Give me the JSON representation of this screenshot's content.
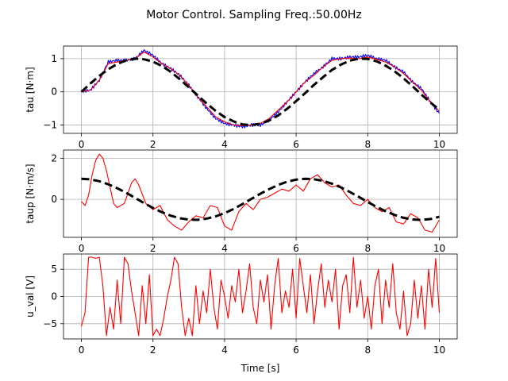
{
  "figure": {
    "title": "Motor Control. Sampling Freq.:50.00Hz"
  },
  "chart_data": [
    {
      "type": "line",
      "ylabel": "tau [N·m]",
      "xlabel": "",
      "xlim": [
        -0.5,
        10.5
      ],
      "ylim": [
        -1.25,
        1.38
      ],
      "xticks": [
        0,
        2,
        4,
        6,
        8,
        10
      ],
      "yticks": [
        -1,
        0,
        1
      ],
      "grid": true,
      "series": [
        {
          "color": "#0000ff",
          "style": "solid-noisy",
          "x": [
            0,
            0.25,
            0.5,
            0.75,
            1,
            1.25,
            1.5,
            1.75,
            2,
            2.25,
            2.5,
            2.75,
            3,
            3.25,
            3.5,
            3.75,
            4,
            4.25,
            4.5,
            4.75,
            5,
            5.25,
            5.5,
            5.75,
            6,
            6.25,
            6.5,
            6.75,
            7,
            7.25,
            7.5,
            7.75,
            8,
            8.25,
            8.5,
            8.75,
            9,
            9.25,
            9.5,
            9.75,
            10
          ],
          "values": [
            0.02,
            0.05,
            0.35,
            0.9,
            0.95,
            0.95,
            1.0,
            1.25,
            1.1,
            0.85,
            0.7,
            0.5,
            0.2,
            -0.15,
            -0.5,
            -0.8,
            -0.95,
            -1.0,
            -1.05,
            -1.0,
            -1.0,
            -0.85,
            -0.6,
            -0.3,
            0.0,
            0.3,
            0.55,
            0.75,
            1.0,
            1.0,
            1.05,
            1.05,
            1.1,
            1.0,
            0.95,
            0.75,
            0.6,
            0.3,
            0.1,
            -0.3,
            -0.65
          ]
        },
        {
          "color": "#ff0000",
          "style": "solid",
          "x": [
            0,
            0.25,
            0.5,
            0.75,
            1,
            1.25,
            1.5,
            1.75,
            2,
            2.25,
            2.5,
            2.75,
            3,
            3.25,
            3.5,
            3.75,
            4,
            4.25,
            4.5,
            4.75,
            5,
            5.25,
            5.5,
            5.75,
            6,
            6.25,
            6.5,
            6.75,
            7,
            7.25,
            7.5,
            7.75,
            8,
            8.25,
            8.5,
            8.75,
            9,
            9.25,
            9.5,
            9.75,
            10
          ],
          "values": [
            0.0,
            0.05,
            0.35,
            0.85,
            0.9,
            0.95,
            1.0,
            1.2,
            1.05,
            0.85,
            0.7,
            0.5,
            0.2,
            -0.15,
            -0.45,
            -0.75,
            -0.9,
            -1.0,
            -1.02,
            -1.0,
            -0.95,
            -0.8,
            -0.55,
            -0.3,
            0.0,
            0.3,
            0.5,
            0.75,
            0.95,
            1.0,
            1.02,
            1.0,
            1.05,
            0.98,
            0.9,
            0.75,
            0.55,
            0.3,
            0.05,
            -0.3,
            -0.58
          ]
        },
        {
          "color": "#000000",
          "style": "dashed",
          "x": [
            0,
            0.25,
            0.5,
            0.75,
            1,
            1.25,
            1.5,
            1.75,
            2,
            2.25,
            2.5,
            2.75,
            3,
            3.25,
            3.5,
            3.75,
            4,
            4.25,
            4.5,
            4.75,
            5,
            5.25,
            5.5,
            5.75,
            6,
            6.25,
            6.5,
            6.75,
            7,
            7.25,
            7.5,
            7.75,
            8,
            8.25,
            8.5,
            8.75,
            9,
            9.25,
            9.5,
            9.75,
            10
          ],
          "values": [
            0.0,
            0.25,
            0.48,
            0.68,
            0.84,
            0.95,
            1.0,
            0.98,
            0.91,
            0.78,
            0.6,
            0.38,
            0.14,
            -0.11,
            -0.35,
            -0.57,
            -0.76,
            -0.89,
            -0.98,
            -1.0,
            -0.96,
            -0.86,
            -0.71,
            -0.51,
            -0.28,
            -0.04,
            0.21,
            0.44,
            0.66,
            0.82,
            0.94,
            1.0,
            0.99,
            0.92,
            0.79,
            0.62,
            0.41,
            0.17,
            -0.08,
            -0.32,
            -0.54
          ]
        }
      ]
    },
    {
      "type": "line",
      "ylabel": "taup [N·m/s]",
      "xlabel": "",
      "xlim": [
        -0.5,
        10.5
      ],
      "ylim": [
        -1.85,
        2.4
      ],
      "xticks": [
        0,
        2,
        4,
        6,
        8,
        10
      ],
      "yticks": [
        0,
        2
      ],
      "grid": true,
      "series": [
        {
          "color": "#ff0000",
          "style": "solid",
          "x": [
            0,
            0.1,
            0.2,
            0.3,
            0.4,
            0.5,
            0.6,
            0.7,
            0.8,
            0.9,
            1,
            1.2,
            1.4,
            1.5,
            1.6,
            1.8,
            2,
            2.2,
            2.4,
            2.6,
            2.8,
            3,
            3.2,
            3.4,
            3.6,
            3.8,
            4,
            4.2,
            4.4,
            4.6,
            4.8,
            5,
            5.2,
            5.4,
            5.6,
            5.8,
            6,
            6.2,
            6.4,
            6.6,
            6.8,
            7,
            7.2,
            7.4,
            7.6,
            7.8,
            8,
            8.2,
            8.4,
            8.6,
            8.8,
            9,
            9.2,
            9.4,
            9.6,
            9.8,
            10
          ],
          "values": [
            -0.1,
            -0.3,
            0.2,
            1.2,
            1.9,
            2.2,
            2.0,
            1.4,
            0.6,
            -0.2,
            -0.4,
            -0.2,
            0.8,
            1.0,
            0.7,
            -0.2,
            -0.5,
            -0.3,
            -1.0,
            -1.3,
            -1.5,
            -1.1,
            -0.8,
            -0.9,
            -0.3,
            -0.4,
            -1.3,
            -1.5,
            -0.6,
            -0.2,
            -0.5,
            0.0,
            0.1,
            0.3,
            0.5,
            0.4,
            0.7,
            0.4,
            1.0,
            1.2,
            0.8,
            0.6,
            0.7,
            0.2,
            -0.2,
            -0.3,
            0.0,
            -0.4,
            -0.6,
            -0.4,
            -1.1,
            -1.2,
            -0.7,
            -0.9,
            -1.5,
            -1.6,
            -1.0
          ]
        },
        {
          "color": "#000000",
          "style": "dashed",
          "x": [
            0,
            0.25,
            0.5,
            0.75,
            1,
            1.25,
            1.5,
            1.75,
            2,
            2.25,
            2.5,
            2.75,
            3,
            3.25,
            3.5,
            3.75,
            4,
            4.25,
            4.5,
            4.75,
            5,
            5.25,
            5.5,
            5.75,
            6,
            6.25,
            6.5,
            6.75,
            7,
            7.25,
            7.5,
            7.75,
            8,
            8.25,
            8.5,
            8.75,
            9,
            9.25,
            9.5,
            9.75,
            10
          ],
          "values": [
            1.0,
            0.97,
            0.88,
            0.73,
            0.54,
            0.32,
            0.07,
            -0.18,
            -0.42,
            -0.63,
            -0.8,
            -0.92,
            -0.99,
            -1.0,
            -0.94,
            -0.83,
            -0.67,
            -0.47,
            -0.23,
            0.02,
            0.27,
            0.5,
            0.7,
            0.86,
            0.96,
            1.0,
            0.98,
            0.9,
            0.76,
            0.58,
            0.36,
            0.12,
            -0.13,
            -0.37,
            -0.58,
            -0.76,
            -0.9,
            -0.98,
            -1.0,
            -0.96,
            -0.85
          ]
        }
      ]
    },
    {
      "type": "line",
      "ylabel": "u_val [V]",
      "xlabel": "Time [s]",
      "xlim": [
        -0.5,
        10.5
      ],
      "ylim": [
        -7.8,
        7.8
      ],
      "xticks": [
        0,
        2,
        4,
        6,
        8,
        10
      ],
      "yticks": [
        -5,
        0,
        5
      ],
      "grid": true,
      "series": [
        {
          "color": "#ff0000",
          "style": "solid",
          "x": [
            0,
            0.1,
            0.2,
            0.3,
            0.4,
            0.5,
            0.6,
            0.7,
            0.8,
            0.9,
            1,
            1.1,
            1.2,
            1.3,
            1.4,
            1.5,
            1.6,
            1.7,
            1.8,
            1.9,
            2,
            2.1,
            2.2,
            2.3,
            2.4,
            2.5,
            2.6,
            2.7,
            2.8,
            2.9,
            3,
            3.1,
            3.2,
            3.3,
            3.4,
            3.5,
            3.6,
            3.7,
            3.8,
            3.9,
            4,
            4.1,
            4.2,
            4.3,
            4.4,
            4.5,
            4.6,
            4.7,
            4.8,
            4.9,
            5,
            5.1,
            5.2,
            5.3,
            5.4,
            5.5,
            5.6,
            5.7,
            5.8,
            5.9,
            6,
            6.1,
            6.2,
            6.3,
            6.4,
            6.5,
            6.6,
            6.7,
            6.8,
            6.9,
            7,
            7.1,
            7.2,
            7.3,
            7.4,
            7.5,
            7.6,
            7.7,
            7.8,
            7.9,
            8,
            8.1,
            8.2,
            8.3,
            8.4,
            8.5,
            8.6,
            8.7,
            8.8,
            8.9,
            9,
            9.1,
            9.2,
            9.3,
            9.4,
            9.5,
            9.6,
            9.7,
            9.8,
            9.9,
            10
          ],
          "values": [
            -5.5,
            -3,
            7.2,
            7.2,
            7.0,
            7.2,
            2,
            -7.2,
            -2,
            -6,
            3,
            -5,
            7.2,
            6,
            1,
            -3,
            -7.2,
            2,
            -5,
            4,
            -7.2,
            -6,
            -7.2,
            -4,
            0,
            3,
            7.2,
            6,
            -2,
            -7.2,
            -4,
            -7.2,
            2,
            -5,
            1,
            -3,
            5,
            -2,
            -6,
            3,
            0,
            -4,
            2,
            -1,
            5,
            -3,
            1,
            6,
            -2,
            -5,
            3,
            -1,
            4,
            -6,
            2,
            7,
            -3,
            1,
            -2,
            5,
            -4,
            7,
            2,
            -3,
            4,
            -5,
            1,
            6,
            -2,
            3,
            -1,
            5,
            -6,
            2,
            4,
            -3,
            7.2,
            -2,
            3,
            -4,
            0,
            -6,
            2,
            5,
            -5,
            3,
            -2,
            6,
            -3,
            -6,
            1,
            -7.2,
            -5,
            3,
            -4,
            2,
            -6,
            5,
            -2,
            7,
            -3
          ]
        }
      ]
    }
  ]
}
